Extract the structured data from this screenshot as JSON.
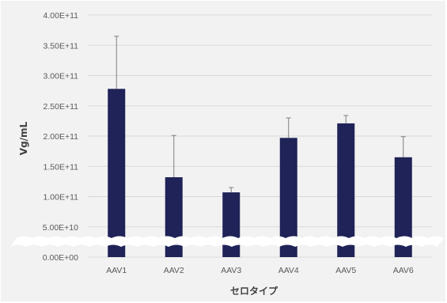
{
  "chart_data": {
    "type": "bar",
    "categories": [
      "AAV1",
      "AAV2",
      "AAV3",
      "AAV4",
      "AAV5",
      "AAV6"
    ],
    "values": [
      278000000000.0,
      132000000000.0,
      107000000000.0,
      197000000000.0,
      221000000000.0,
      165000000000.0
    ],
    "error_upper": [
      87000000000.0,
      69000000000.0,
      8000000000.0,
      33000000000.0,
      13000000000.0,
      34000000000.0
    ],
    "ylim": [
      0,
      400000000000.0
    ],
    "yticks": [
      0,
      50000000000.0,
      100000000000.0,
      150000000000.0,
      200000000000.0,
      250000000000.0,
      300000000000.0,
      350000000000.0,
      400000000000.0
    ],
    "ytick_labels": [
      "0.00E+00",
      "5.00E+10",
      "1.00E+11",
      "1.50E+11",
      "2.00E+11",
      "2.50E+11",
      "3.00E+11",
      "3.50E+11",
      "4.00E+11"
    ],
    "xlabel": "セロタイプ",
    "ylabel": "Vg/mL",
    "grid": true,
    "axis_break": true,
    "colors": {
      "bar": "#1f2357",
      "grid": "#d9d9d9",
      "background": "#f2f2f2",
      "error_bar": "#7f7f7f",
      "break_band": "#ffffff"
    }
  }
}
